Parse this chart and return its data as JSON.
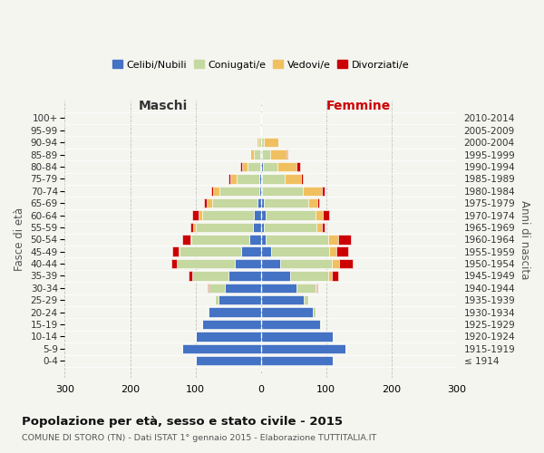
{
  "age_groups": [
    "100+",
    "95-99",
    "90-94",
    "85-89",
    "80-84",
    "75-79",
    "70-74",
    "65-69",
    "60-64",
    "55-59",
    "50-54",
    "45-49",
    "40-44",
    "35-39",
    "30-34",
    "25-29",
    "20-24",
    "15-19",
    "10-14",
    "5-9",
    "0-4"
  ],
  "birth_years": [
    "≤ 1914",
    "1915-1919",
    "1920-1924",
    "1925-1929",
    "1930-1934",
    "1935-1939",
    "1940-1944",
    "1945-1949",
    "1950-1954",
    "1955-1959",
    "1960-1964",
    "1965-1969",
    "1970-1974",
    "1975-1979",
    "1980-1984",
    "1985-1989",
    "1990-1994",
    "1995-1999",
    "2000-2004",
    "2005-2009",
    "2010-2014"
  ],
  "males_celibe": [
    0,
    0,
    0,
    1,
    1,
    2,
    3,
    5,
    10,
    12,
    18,
    30,
    40,
    50,
    55,
    65,
    80,
    90,
    100,
    120,
    100
  ],
  "males_coniugato": [
    0,
    1,
    4,
    10,
    20,
    35,
    60,
    70,
    80,
    88,
    88,
    95,
    88,
    55,
    25,
    5,
    2,
    0,
    0,
    0,
    0
  ],
  "males_vedovo": [
    0,
    0,
    2,
    5,
    8,
    10,
    10,
    8,
    5,
    3,
    2,
    1,
    1,
    0,
    0,
    0,
    0,
    0,
    0,
    0,
    0
  ],
  "males_divorziato": [
    0,
    0,
    0,
    0,
    2,
    2,
    3,
    4,
    10,
    5,
    12,
    10,
    8,
    5,
    2,
    0,
    0,
    0,
    0,
    0,
    0
  ],
  "females_nubile": [
    0,
    0,
    0,
    2,
    3,
    2,
    2,
    4,
    8,
    5,
    8,
    15,
    30,
    45,
    55,
    65,
    80,
    90,
    110,
    130,
    110
  ],
  "females_coniugata": [
    0,
    0,
    5,
    12,
    22,
    35,
    62,
    68,
    75,
    80,
    95,
    90,
    78,
    58,
    28,
    8,
    4,
    2,
    0,
    0,
    0
  ],
  "females_vedova": [
    1,
    1,
    22,
    25,
    30,
    25,
    30,
    15,
    12,
    8,
    15,
    10,
    12,
    5,
    2,
    0,
    0,
    0,
    0,
    0,
    0
  ],
  "females_divorziata": [
    0,
    0,
    0,
    2,
    5,
    2,
    3,
    2,
    10,
    5,
    20,
    18,
    20,
    10,
    2,
    0,
    0,
    0,
    0,
    0,
    0
  ],
  "color_celibe": "#4472c4",
  "color_coniugato": "#c5d8a0",
  "color_vedovo": "#f0c060",
  "color_divorziato": "#cc0000",
  "xlim": 300,
  "title": "Popolazione per età, sesso e stato civile - 2015",
  "subtitle": "COMUNE DI STORO (TN) - Dati ISTAT 1° gennaio 2015 - Elaborazione TUTTITALIA.IT",
  "ylabel_left": "Fasce di età",
  "ylabel_right": "Anni di nascita",
  "xlabel_left": "Maschi",
  "xlabel_right": "Femmine",
  "legend_labels": [
    "Celibi/Nubili",
    "Coniugati/e",
    "Vedovi/e",
    "Divorziati/e"
  ],
  "background_color": "#f5f5f0",
  "figsize": [
    6.0,
    5.0
  ],
  "dpi": 100
}
